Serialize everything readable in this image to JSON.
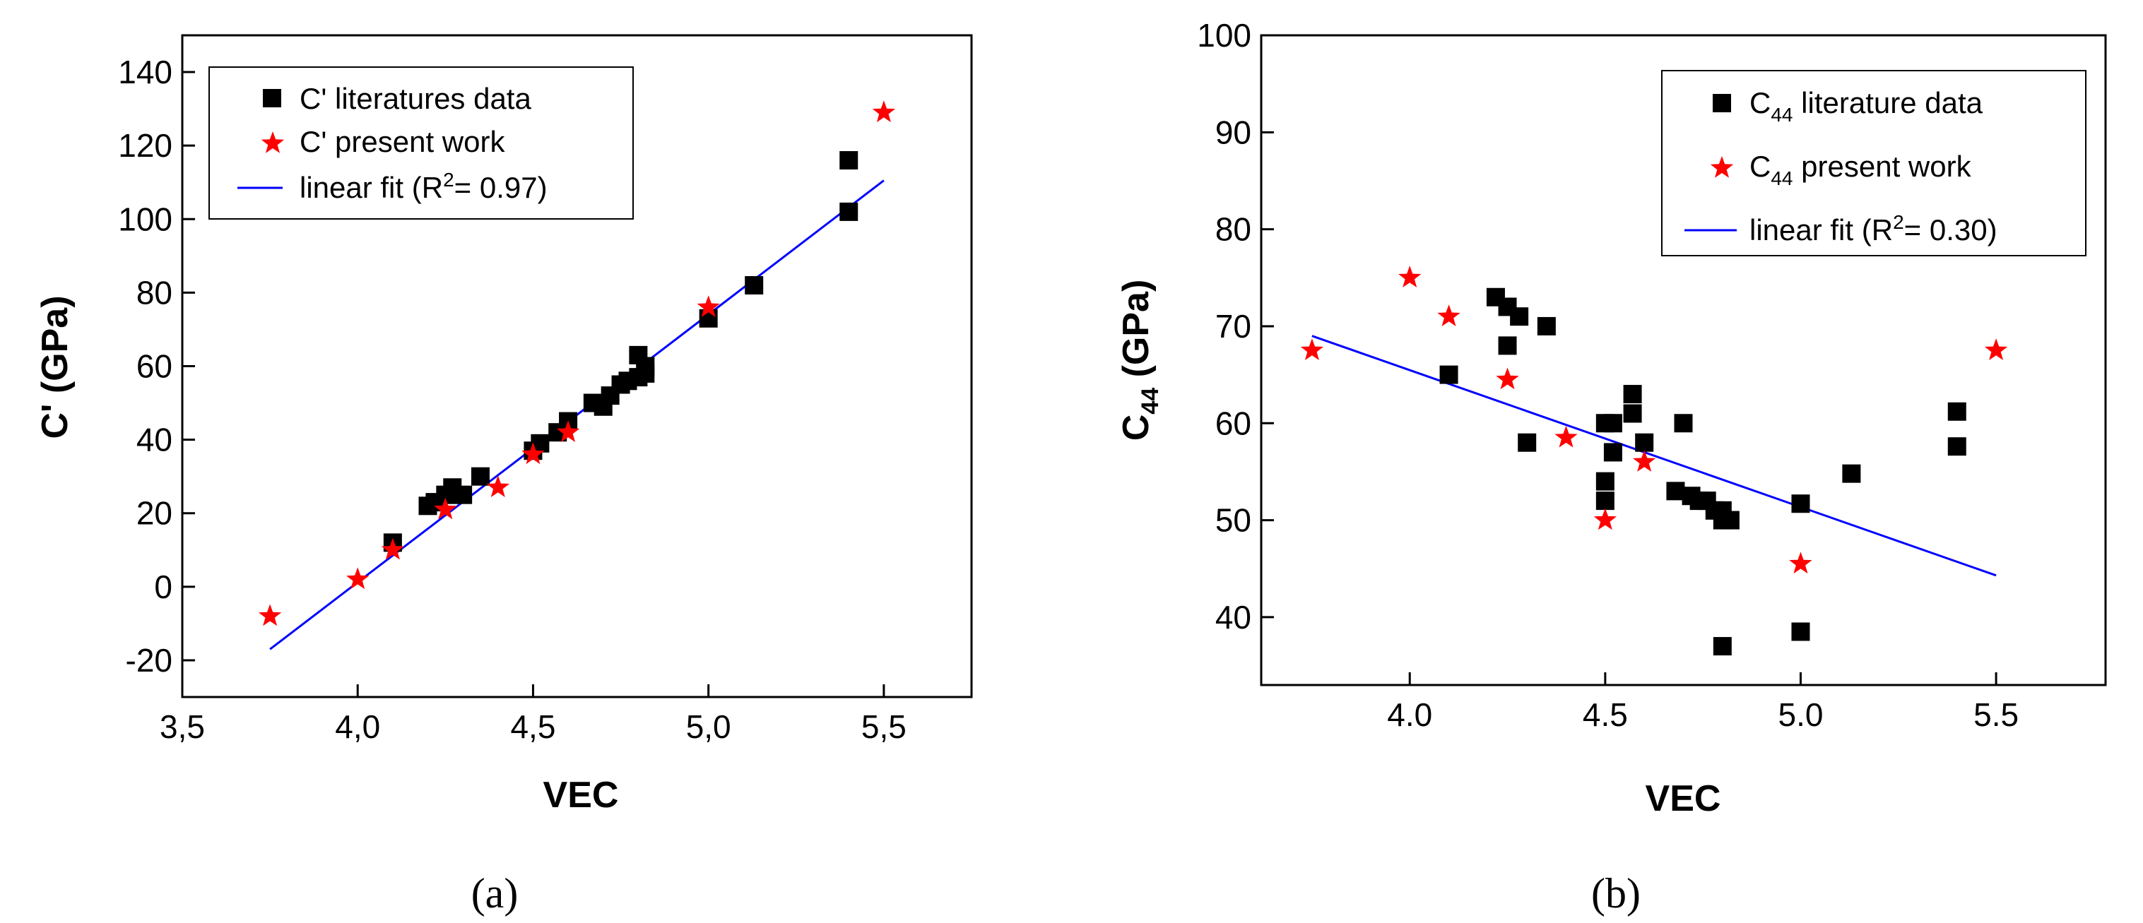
{
  "colors": {
    "literature": "#000000",
    "present": "#ff0000",
    "fit": "#0000ff",
    "axis": "#000000"
  },
  "chart_data": [
    {
      "type": "scatter",
      "caption": "(a)",
      "xlabel": "VEC",
      "ylabel": "C' (GPa)",
      "xlim": [
        3.5,
        5.75
      ],
      "ylim": [
        -30,
        150
      ],
      "xticks": [
        3.5,
        4.0,
        4.5,
        5.0,
        5.5
      ],
      "xtick_labels": [
        "3,5",
        "4,0",
        "4,5",
        "5,0",
        "5,5"
      ],
      "yticks": [
        -20,
        0,
        20,
        40,
        60,
        80,
        100,
        120,
        140
      ],
      "ytick_labels": [
        "-20",
        "0",
        "20",
        "40",
        "60",
        "80",
        "100",
        "120",
        "140"
      ],
      "legend_position": "top-left",
      "series": [
        {
          "name": "C' literatures data",
          "marker": "square",
          "x": [
            4.1,
            4.2,
            4.22,
            4.25,
            4.27,
            4.3,
            4.35,
            4.5,
            4.52,
            4.57,
            4.6,
            4.67,
            4.7,
            4.72,
            4.75,
            4.77,
            4.8,
            4.8,
            4.82,
            4.82,
            5.0,
            5.13,
            5.4,
            5.4
          ],
          "y": [
            12,
            22,
            23,
            25,
            27,
            25,
            30,
            37,
            39,
            42,
            45,
            50,
            49,
            52,
            55,
            56,
            57,
            63,
            58,
            60,
            73,
            82,
            102,
            116
          ]
        },
        {
          "name": "C' present work",
          "marker": "star",
          "x": [
            3.75,
            4.0,
            4.1,
            4.25,
            4.4,
            4.5,
            4.6,
            5.0,
            5.5
          ],
          "y": [
            -8,
            2,
            10,
            21,
            27,
            36,
            42,
            76,
            129
          ]
        },
        {
          "name": "linear fit (R² = 0.97)",
          "type": "line",
          "legend_main": "linear fit (R",
          "legend_sup": "2",
          "legend_tail": "= 0.97)",
          "x": [
            3.75,
            5.5
          ],
          "y": [
            -17,
            110.5
          ]
        }
      ]
    },
    {
      "type": "scatter",
      "caption": "(b)",
      "xlabel": "VEC",
      "ylabel": "C44 (GPa)",
      "ylabel_main": "C",
      "ylabel_sub": "44",
      "ylabel_tail": " (GPa)",
      "xlim": [
        3.62,
        5.78
      ],
      "ylim": [
        33,
        100
      ],
      "xticks": [
        4.0,
        4.5,
        5.0,
        5.5
      ],
      "xtick_labels": [
        "4.0",
        "4.5",
        "5.0",
        "5.5"
      ],
      "yticks": [
        40,
        50,
        60,
        70,
        80,
        90,
        100
      ],
      "ytick_labels": [
        "40",
        "50",
        "60",
        "70",
        "80",
        "90",
        "100"
      ],
      "legend_position": "top-right",
      "series": [
        {
          "name": "C44 literature data",
          "legend_main": "C",
          "legend_sub": "44",
          "legend_tail": " literature data",
          "marker": "square",
          "x": [
            4.1,
            4.22,
            4.25,
            4.25,
            4.28,
            4.3,
            4.35,
            4.5,
            4.5,
            4.5,
            4.52,
            4.52,
            4.57,
            4.57,
            4.6,
            4.68,
            4.7,
            4.72,
            4.74,
            4.76,
            4.78,
            4.8,
            4.8,
            4.82,
            4.8,
            5.0,
            5.0,
            5.13,
            5.4,
            5.4
          ],
          "y": [
            65,
            73,
            72,
            68,
            71,
            58,
            70,
            60,
            54,
            52,
            60,
            57,
            63,
            61,
            58,
            53,
            60,
            52.5,
            52,
            52,
            51,
            50,
            51,
            50,
            37,
            51.7,
            38.5,
            54.8,
            61.2,
            57.6
          ]
        },
        {
          "name": "C44 present work",
          "legend_main": "C",
          "legend_sub": "44",
          "legend_tail": " present work",
          "marker": "star",
          "x": [
            3.75,
            4.0,
            4.1,
            4.25,
            4.4,
            4.5,
            4.6,
            5.0,
            5.5
          ],
          "y": [
            67.5,
            75,
            71,
            64.5,
            58.5,
            50,
            56,
            45.5,
            67.5
          ]
        },
        {
          "name": "linear fit (R² = 0.30)",
          "type": "line",
          "legend_main": "linear fit (R",
          "legend_sup": "2",
          "legend_tail": "= 0.30)",
          "x": [
            3.75,
            5.5
          ],
          "y": [
            69,
            44.3
          ]
        }
      ]
    }
  ]
}
